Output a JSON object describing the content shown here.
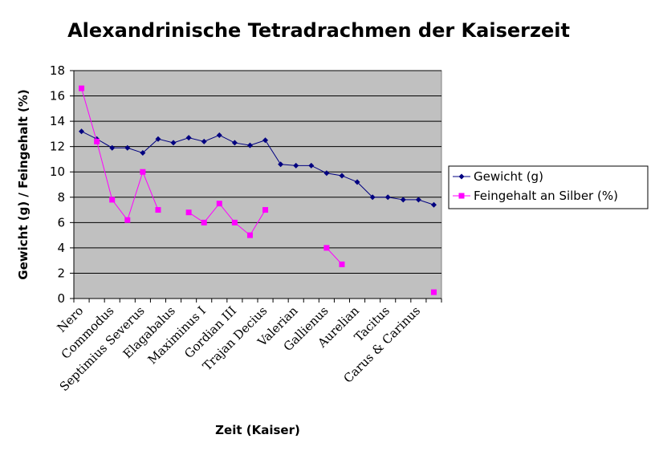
{
  "chart_data": {
    "type": "line",
    "title": "Alexandrinische Tetradrachmen der Kaiserzeit",
    "xlabel": "Zeit (Kaiser)",
    "ylabel": "Gewicht (g)  /  Feingehalt (%)",
    "ylim": [
      0,
      18
    ],
    "yticks": [
      0,
      2,
      4,
      6,
      8,
      10,
      12,
      14,
      16,
      18
    ],
    "grid": true,
    "legend_position": "right",
    "plot_background": "#c0c0c0",
    "category_count": 24,
    "category_labels": [
      "Nero",
      "",
      "Commodus",
      "",
      "Septimius Severus",
      "",
      "Elagabalus",
      "",
      "Maximinus I",
      "",
      "Gordian III",
      "",
      "Trajan Decius",
      "",
      "Valerian",
      "",
      "Gallienus",
      "",
      "Aurelian",
      "",
      "Tacitus",
      "",
      "Carus & Carinus",
      ""
    ],
    "series": [
      {
        "name": "Gewicht (g)",
        "color": "#000080",
        "marker": "diamond",
        "values": [
          13.2,
          12.6,
          11.9,
          11.9,
          11.5,
          12.6,
          12.3,
          12.7,
          12.4,
          12.9,
          12.3,
          12.1,
          12.5,
          10.6,
          10.5,
          10.5,
          9.9,
          9.7,
          9.2,
          8.0,
          8.0,
          7.8,
          7.8,
          7.4
        ]
      },
      {
        "name": "Feingehalt an Silber (%)",
        "color": "#ff00ff",
        "marker": "square",
        "values": [
          16.6,
          12.4,
          7.8,
          6.2,
          10.0,
          7.0,
          null,
          6.8,
          6.0,
          7.5,
          6.0,
          5.0,
          7.0,
          null,
          null,
          null,
          4.0,
          2.7,
          null,
          null,
          null,
          null,
          null,
          0.5
        ]
      }
    ]
  }
}
